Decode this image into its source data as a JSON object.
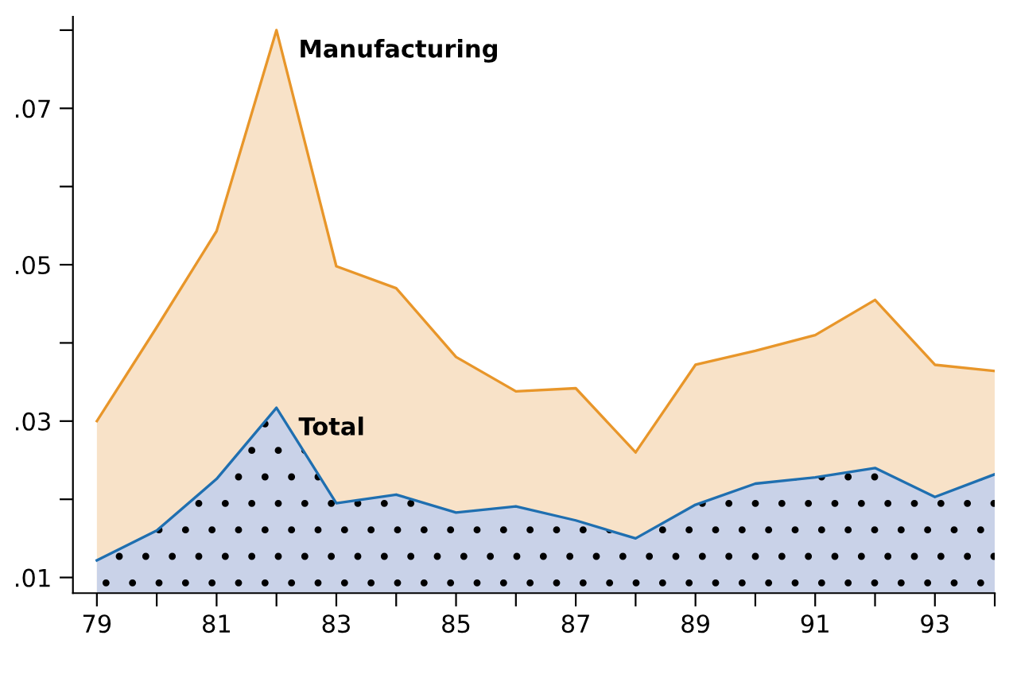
{
  "chart_data": {
    "type": "area",
    "x": [
      79,
      80,
      81,
      82,
      83,
      84,
      85,
      86,
      87,
      88,
      89,
      90,
      91,
      92,
      93,
      94
    ],
    "series": [
      {
        "name": "Manufacturing",
        "color": "#e8962a",
        "values": [
          0.03,
          0.042,
          0.0543,
          0.08,
          0.0498,
          0.047,
          0.0382,
          0.0338,
          0.0342,
          0.026,
          0.0372,
          0.039,
          0.041,
          0.0455,
          0.0372,
          0.0364
        ]
      },
      {
        "name": "Total",
        "color": "#1f6fb0",
        "values": [
          0.0122,
          0.016,
          0.0226,
          0.0317,
          0.0195,
          0.0206,
          0.0183,
          0.0191,
          0.0173,
          0.015,
          0.0193,
          0.022,
          0.0228,
          0.024,
          0.0203,
          0.0232
        ]
      }
    ],
    "xlim": [
      78.6,
      94
    ],
    "xticks": [
      79,
      {
        "value": 80,
        "label": null
      },
      81,
      {
        "value": 82,
        "label": null
      },
      83,
      {
        "value": 84,
        "label": null
      },
      85,
      {
        "value": 86,
        "label": null
      },
      87,
      {
        "value": 88,
        "label": null
      },
      89,
      {
        "value": 90,
        "label": null
      },
      91,
      {
        "value": 92,
        "label": null
      },
      93,
      {
        "value": 94,
        "label": null
      }
    ],
    "ylim": [
      0.008,
      0.0817
    ],
    "yticks": [
      {
        "value": 0.01,
        "label": ".01"
      },
      {
        "value": 0.02,
        "label": null
      },
      {
        "value": 0.03,
        "label": ".03"
      },
      {
        "value": 0.04,
        "label": null
      },
      {
        "value": 0.05,
        "label": ".05"
      },
      {
        "value": 0.06,
        "label": null
      },
      {
        "value": 0.07,
        "label": ".07"
      },
      {
        "value": 0.08,
        "label": null
      }
    ],
    "grid": false,
    "legend": false
  }
}
